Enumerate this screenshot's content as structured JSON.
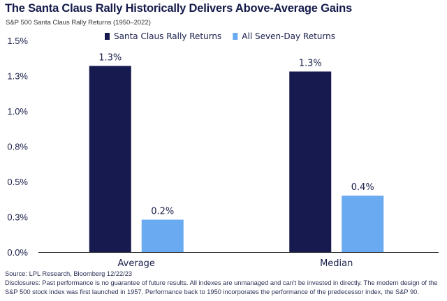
{
  "title": "The Santa Claus Rally Historically Delivers Above-Average Gains",
  "subtitle": "S&P 500 Santa Claus Rally Returns (1950–2022)",
  "colors": {
    "series1": "#171a4e",
    "series2": "#6aaaf0",
    "axis": "#333333",
    "text": "#1a1f4b"
  },
  "chart_data": {
    "type": "bar",
    "title": "The Santa Claus Rally Historically Delivers Above-Average Gains",
    "subtitle": "S&P 500 Santa Claus Rally Returns (1950–2022)",
    "categories": [
      "Average",
      "Median"
    ],
    "series": [
      {
        "name": "Santa Claus Rally Returns",
        "values": [
          1.32,
          1.28
        ],
        "labels": [
          "1.3%",
          "1.3%"
        ]
      },
      {
        "name": "All Seven-Day Returns",
        "values": [
          0.23,
          0.4
        ],
        "labels": [
          "0.2%",
          "0.4%"
        ]
      }
    ],
    "ylim": [
      0,
      1.5
    ],
    "yticks": [
      0,
      0.25,
      0.5,
      0.75,
      1.0,
      1.25,
      1.5
    ],
    "ytick_labels": [
      "0.0%",
      "0.3%",
      "0.5%",
      "0.8%",
      "1.0%",
      "1.3%",
      "1.5%"
    ],
    "xlabel": "",
    "ylabel": "",
    "legend_position": "top-left",
    "grid": false
  },
  "footer": {
    "source": "Source: LPL Research, Bloomberg 12/22/23",
    "disclosures": "Disclosures: Past performance is no guarantee of future results. All indexes are unmanaged and can't be invested in directly. The modern design of the S&P 500 stock index was first launched in 1957. Performance back to 1950 incorporates the performance of the predecessor index, the S&P 90."
  }
}
